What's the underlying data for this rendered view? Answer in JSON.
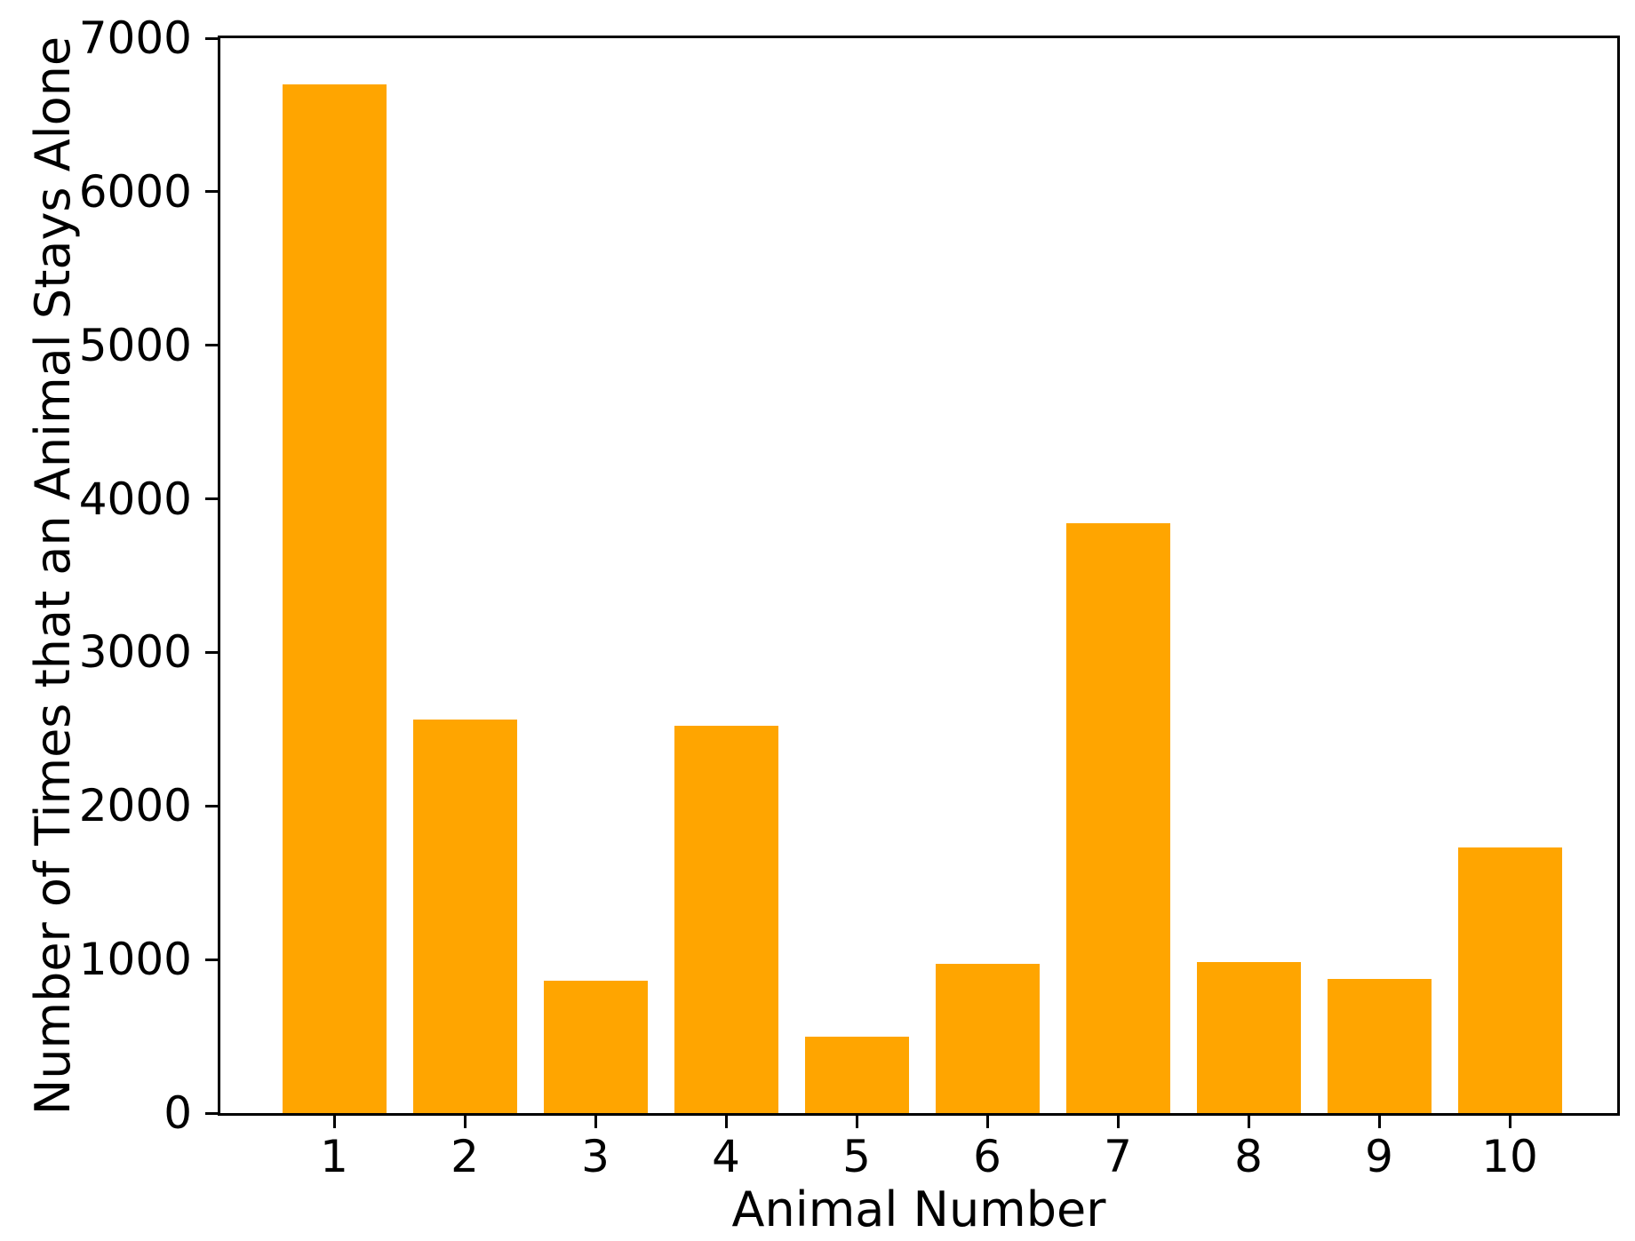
{
  "chart_data": {
    "type": "bar",
    "xlabel": "Animal Number",
    "ylabel": "Number of Times that an Animal Stays Alone",
    "categories": [
      "1",
      "2",
      "3",
      "4",
      "5",
      "6",
      "7",
      "8",
      "9",
      "10"
    ],
    "values": [
      6700,
      2560,
      860,
      2520,
      500,
      970,
      3840,
      985,
      875,
      1730
    ],
    "ylim": [
      0,
      7000
    ],
    "yticks": [
      0,
      1000,
      2000,
      3000,
      4000,
      5000,
      6000,
      7000
    ],
    "bar_color": "#FFA500",
    "axis_color": "#000000",
    "background_color": "#FFFFFF",
    "grid": false,
    "legend_position": "none"
  }
}
